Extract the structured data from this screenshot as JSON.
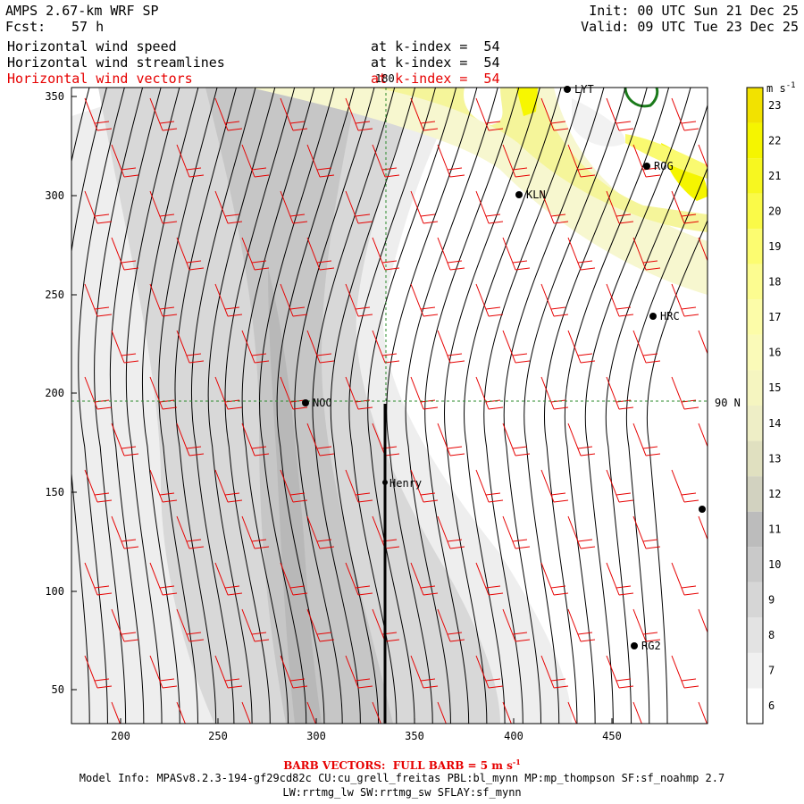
{
  "header": {
    "model": "AMPS 2.67-km WRF SP",
    "fcst_label": "Fcst:",
    "fcst_value": "57 h",
    "init": "Init: 00 UTC Sun 21 Dec 25",
    "valid": "Valid: 09 UTC Tue 23 Dec 25",
    "fields": [
      {
        "name": "Horizontal wind speed",
        "level": "at k-index =  54",
        "color": "#000000"
      },
      {
        "name": "Horizontal wind streamlines",
        "level": "at k-index =  54",
        "color": "#000000"
      },
      {
        "name": "Horizontal wind vectors",
        "level": "at k-index =  54",
        "color": "#e60000"
      }
    ]
  },
  "map": {
    "x_ticks": [
      "200",
      "250",
      "300",
      "350",
      "400",
      "450"
    ],
    "y_ticks": [
      "50",
      "100",
      "150",
      "200",
      "250",
      "300",
      "350"
    ],
    "meridian_label": "180",
    "parallel_label": "90 N",
    "stations": [
      {
        "id": "LYT",
        "label": "LYT"
      },
      {
        "id": "ROG",
        "label": "ROG"
      },
      {
        "id": "KLN",
        "label": "KLN"
      },
      {
        "id": "HRC",
        "label": "HRC"
      },
      {
        "id": "NOO",
        "label": "NOO"
      },
      {
        "id": "Henry",
        "label": "Henry"
      },
      {
        "id": "RG2",
        "label": "RG2"
      },
      {
        "id": "edge",
        "label": ""
      }
    ]
  },
  "colorbar": {
    "unit": "m s",
    "unit_exp": "-1",
    "levels": [
      6,
      7,
      8,
      9,
      10,
      11,
      12,
      13,
      14,
      15,
      16,
      17,
      18,
      19,
      20,
      21,
      22,
      23
    ],
    "colors": [
      "#ffffff",
      "#f0f0f0",
      "#e3e3e3",
      "#d6d6d6",
      "#c9c9c9",
      "#bcbcbc",
      "#d2d2c0",
      "#e0e0c0",
      "#eeeec6",
      "#f5f5c0",
      "#fafab8",
      "#fcfca8",
      "#fcfc90",
      "#fcfc70",
      "#fafa48",
      "#f7f720",
      "#f5f500",
      "#f2e200"
    ]
  },
  "footer": {
    "barb_note": "BARB VECTORS:  FULL BARB = 5 m s",
    "barb_exp": "-1",
    "model_info_1": "Model Info: MPASv8.2.3-194-gf29cd82c CU:cu_grell_freitas PBL:bl_mynn MP:mp_thompson SF:sf_noahmp 2.7",
    "model_info_2": "LW:rrtmg_lw SW:rrtmg_sw SFLAY:sf_mynn"
  }
}
